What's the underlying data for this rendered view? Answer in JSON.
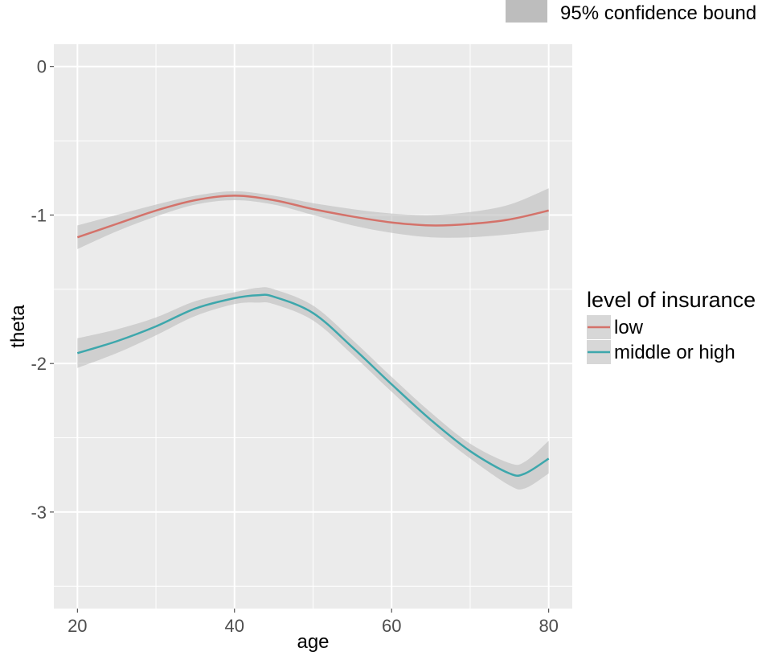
{
  "chart_data": {
    "type": "line",
    "xlabel": "age",
    "ylabel": "theta",
    "xlim": [
      17,
      83
    ],
    "ylim": [
      -3.65,
      0.15
    ],
    "x_ticks": [
      20,
      40,
      60,
      80
    ],
    "y_ticks": [
      0,
      -1,
      -2,
      -3
    ],
    "y_tick_labels": [
      "0",
      "-1",
      "-2",
      "-3"
    ],
    "grid": true,
    "band_legend": {
      "label": "95% confidence bound",
      "placement": "top-right"
    },
    "legend": {
      "title": "level of insurance",
      "placement": "right"
    },
    "series": [
      {
        "name": "low",
        "color": "#d4726a",
        "x": [
          20,
          25,
          30,
          35,
          40,
          45,
          50,
          55,
          60,
          65,
          70,
          75,
          80
        ],
        "y": [
          -1.15,
          -1.06,
          -0.97,
          -0.9,
          -0.87,
          -0.9,
          -0.96,
          -1.01,
          -1.05,
          -1.07,
          -1.06,
          -1.03,
          -0.97
        ],
        "lower": [
          -1.23,
          -1.11,
          -1.01,
          -0.93,
          -0.9,
          -0.93,
          -1.0,
          -1.07,
          -1.12,
          -1.15,
          -1.15,
          -1.13,
          -1.1
        ],
        "upper": [
          -1.07,
          -1.0,
          -0.93,
          -0.87,
          -0.84,
          -0.87,
          -0.92,
          -0.96,
          -0.99,
          -1.0,
          -0.98,
          -0.93,
          -0.82
        ]
      },
      {
        "name": "middle or high",
        "color": "#3da7ac",
        "x": [
          20,
          25,
          30,
          35,
          40,
          43,
          45,
          50,
          55,
          60,
          65,
          70,
          75,
          77,
          80
        ],
        "y": [
          -1.93,
          -1.85,
          -1.75,
          -1.63,
          -1.56,
          -1.54,
          -1.55,
          -1.66,
          -1.89,
          -2.14,
          -2.38,
          -2.59,
          -2.74,
          -2.74,
          -2.64
        ],
        "lower": [
          -2.03,
          -1.93,
          -1.81,
          -1.68,
          -1.6,
          -1.59,
          -1.6,
          -1.71,
          -1.94,
          -2.19,
          -2.43,
          -2.64,
          -2.82,
          -2.84,
          -2.74
        ],
        "upper": [
          -1.83,
          -1.77,
          -1.69,
          -1.58,
          -1.52,
          -1.49,
          -1.5,
          -1.61,
          -1.84,
          -2.09,
          -2.33,
          -2.54,
          -2.67,
          -2.66,
          -2.52
        ]
      }
    ],
    "band_color": "#bdbdbd",
    "panel_color": "#ebebeb",
    "grid_color": "#ffffff"
  }
}
